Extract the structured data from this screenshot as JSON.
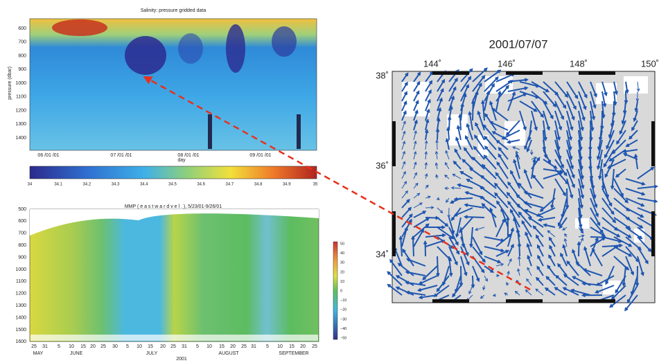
{
  "salinity": {
    "title": "Salinity: pressure gridded data",
    "ylabel": "pressure (dbar)",
    "yticks": [
      "600",
      "700",
      "800",
      "900",
      "1000",
      "1100",
      "1200",
      "1300",
      "1400"
    ],
    "xticks": [
      "06 /01 /01",
      "07 /01 /01",
      "08 /01 /01",
      "09 /01 /01"
    ],
    "xlabel": "day",
    "colorbar": [
      "34",
      "34.1",
      "34.2",
      "34.3",
      "34.4",
      "34.5",
      "34.6",
      "34.7",
      "34.8",
      "34.9",
      "35"
    ]
  },
  "velocity": {
    "title": "MMP ( e a s t w a r d   v e l . ), 5/23/01-9/26/01",
    "yticks": [
      "500",
      "600",
      "700",
      "800",
      "900",
      "1000",
      "1100",
      "1200",
      "1300",
      "1400",
      "1500",
      "1600"
    ],
    "days": [
      "25",
      "31",
      "5",
      "10",
      "15",
      "20",
      "25",
      "30",
      "5",
      "10",
      "15",
      "20",
      "25",
      "31",
      "5",
      "10",
      "15",
      "20",
      "25",
      "31",
      "5",
      "10",
      "15",
      "20",
      "25"
    ],
    "months": [
      "MAY",
      "JUNE",
      "JULY",
      "AUGUST",
      "SEPTEMBER"
    ],
    "year": "2001",
    "colorbar": [
      "50",
      "40",
      "30",
      "20",
      "10",
      "0",
      "−10",
      "−20",
      "−30",
      "−40",
      "−50"
    ]
  },
  "map": {
    "title": "2001/07/07",
    "lon": [
      "144˚",
      "146˚",
      "148˚",
      "150˚"
    ],
    "lat": [
      "38˚",
      "36˚",
      "34˚"
    ]
  }
}
